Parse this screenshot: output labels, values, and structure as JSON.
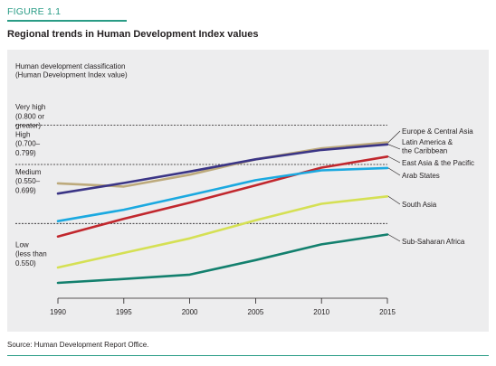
{
  "figure": {
    "label": "FIGURE 1.1",
    "title": "Regional trends in Human Development Index values",
    "source": "Source: Human Development Report Office."
  },
  "chart_data": {
    "type": "line",
    "x": [
      1990,
      1995,
      2000,
      2005,
      2010,
      2015
    ],
    "xlim": [
      1990,
      2015
    ],
    "ylim": [
      0.36,
      0.87
    ],
    "y_title": [
      "Human development classification",
      "(Human Development Index value)"
    ],
    "grid": false,
    "threshold_lines": [
      0.8,
      0.7,
      0.55
    ],
    "bands": [
      {
        "lines": [
          "Very high",
          "(0.800 or",
          "greater)"
        ],
        "y": 0.84
      },
      {
        "lines": [
          "High",
          "(0.700–",
          "0.799)"
        ],
        "y": 0.77
      },
      {
        "lines": [
          "Medium",
          "(0.550–",
          "0.699)"
        ],
        "y": 0.675
      },
      {
        "lines": [
          "Low",
          "(less than",
          "0.550)"
        ],
        "y": 0.49
      }
    ],
    "series": [
      {
        "name": "Europe & Central Asia",
        "color": "#bdaa7c",
        "values": [
          0.652,
          0.644,
          0.674,
          0.713,
          0.741,
          0.756
        ]
      },
      {
        "name": "Latin America & the Caribbean",
        "color": "#3b3586",
        "values": [
          0.626,
          0.653,
          0.682,
          0.713,
          0.737,
          0.751
        ]
      },
      {
        "name": "East Asia & the Pacific",
        "color": "#c1272d",
        "values": [
          0.517,
          0.562,
          0.603,
          0.647,
          0.692,
          0.72
        ]
      },
      {
        "name": "Arab States",
        "color": "#1ba9e0",
        "values": [
          0.556,
          0.585,
          0.622,
          0.66,
          0.685,
          0.691
        ]
      },
      {
        "name": "South Asia",
        "color": "#d5e054",
        "values": [
          0.438,
          0.475,
          0.512,
          0.558,
          0.6,
          0.619
        ]
      },
      {
        "name": "Sub-Saharan Africa",
        "color": "#13806e",
        "values": [
          0.399,
          0.409,
          0.42,
          0.457,
          0.497,
          0.522
        ]
      }
    ],
    "labels": [
      {
        "lines": [
          "Europe & Central Asia"
        ],
        "series": 0
      },
      {
        "lines": [
          "Latin America &",
          "the Caribbean"
        ],
        "series": 1
      },
      {
        "lines": [
          "East Asia & the Pacific"
        ],
        "series": 2
      },
      {
        "lines": [
          "Arab States"
        ],
        "series": 3
      },
      {
        "lines": [
          "South Asia"
        ],
        "series": 4
      },
      {
        "lines": [
          "Sub-Saharan Africa"
        ],
        "series": 5
      }
    ]
  }
}
